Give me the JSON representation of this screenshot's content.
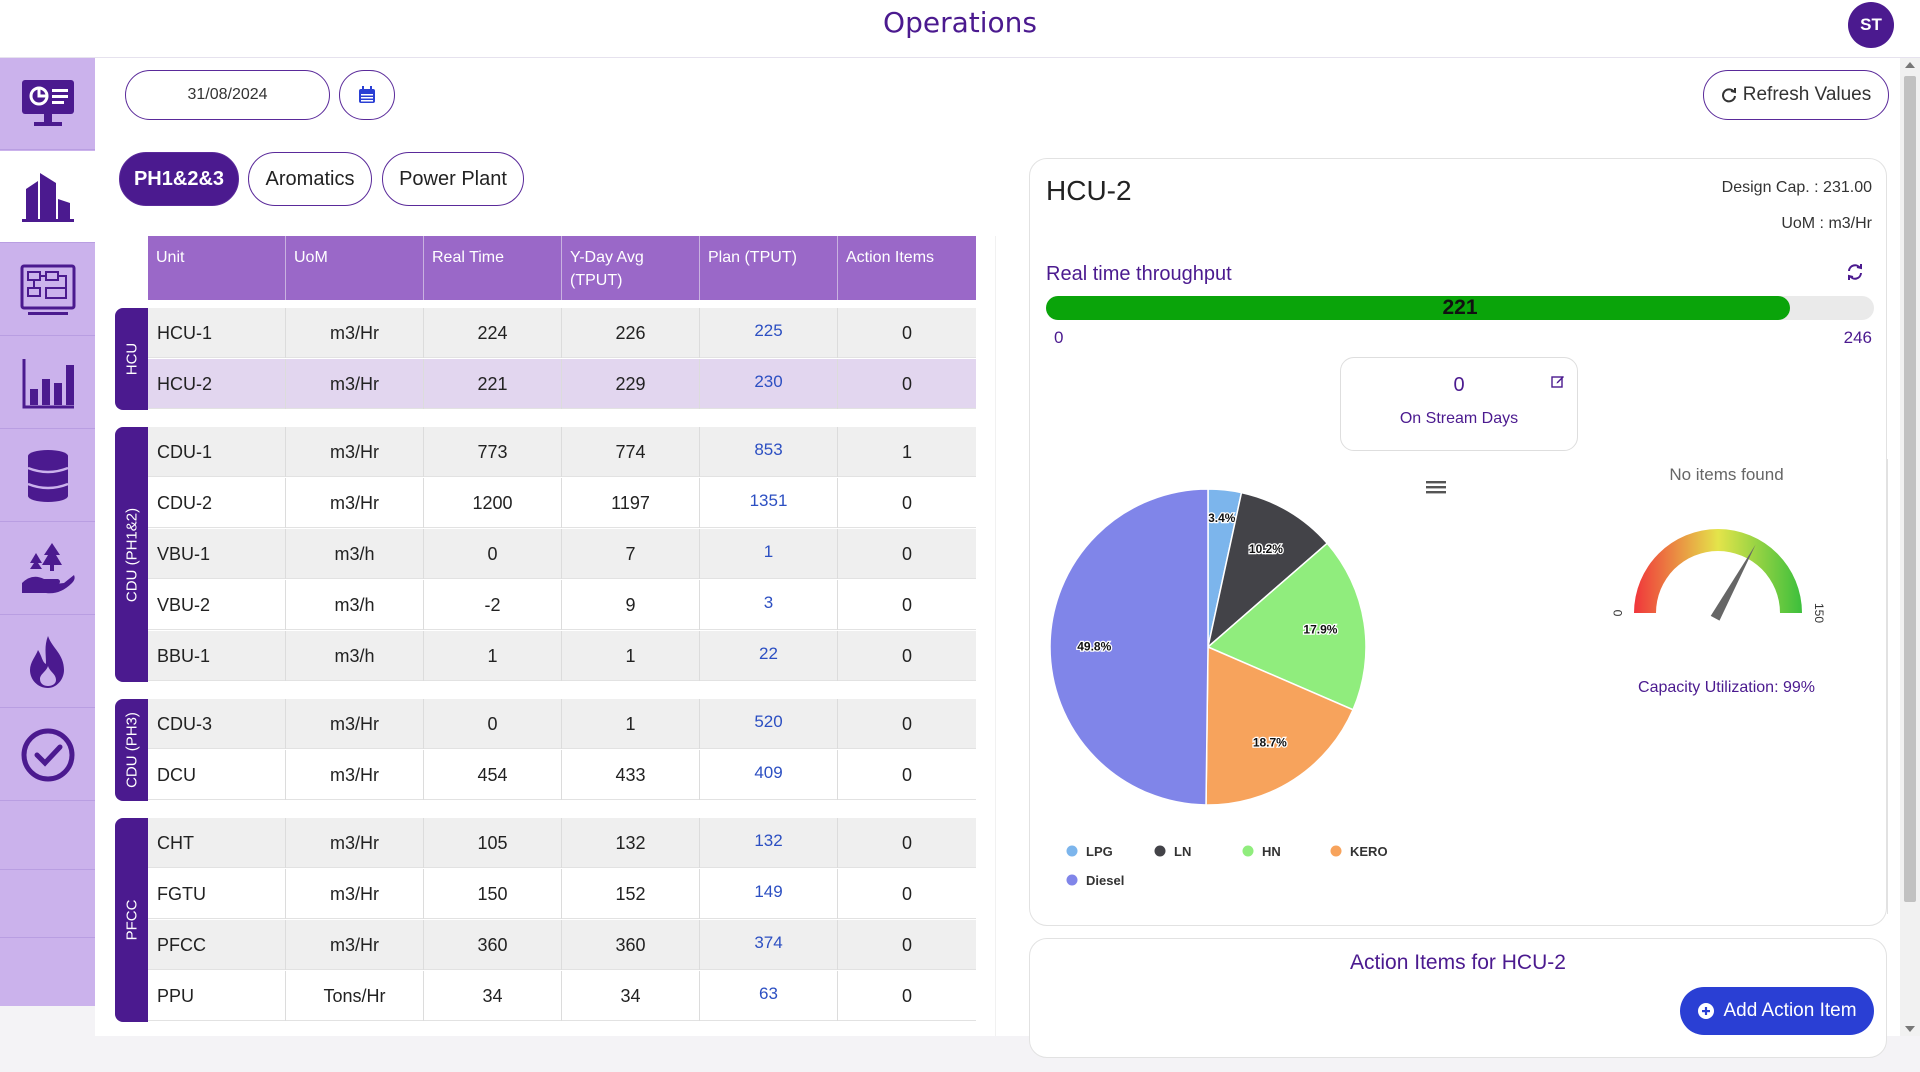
{
  "header": {
    "title": "Operations",
    "avatar_initials": "ST"
  },
  "sidebar": {
    "items": [
      {
        "icon": "dashboard-monitor-icon",
        "active": false
      },
      {
        "icon": "plant-building-icon",
        "active": true
      },
      {
        "icon": "schematic-board-icon",
        "active": false
      },
      {
        "icon": "bar-chart-icon",
        "active": false
      },
      {
        "icon": "barrel-icon",
        "active": false
      },
      {
        "icon": "environment-hand-icon",
        "active": false
      },
      {
        "icon": "flame-icon",
        "active": false
      },
      {
        "icon": "check-circle-icon",
        "active": false
      }
    ]
  },
  "toolbar": {
    "date": "31/08/2024",
    "refresh_label": "Refresh Values"
  },
  "tabs": [
    {
      "label": "PH1&2&3",
      "active": true
    },
    {
      "label": "Aromatics",
      "active": false
    },
    {
      "label": "Power Plant",
      "active": false
    }
  ],
  "table": {
    "columns": [
      "Unit",
      "UoM",
      "Real Time",
      "Y-Day Avg (TPUT)",
      "Plan (TPUT)",
      "Action Items"
    ],
    "groups": [
      {
        "label": "HCU",
        "rows": [
          [
            "HCU-1",
            "m3/Hr",
            "224",
            "226",
            "225",
            "0"
          ],
          [
            "HCU-2",
            "m3/Hr",
            "221",
            "229",
            "230",
            "0"
          ]
        ]
      },
      {
        "label": "CDU (PH1&2)",
        "rows": [
          [
            "CDU-1",
            "m3/Hr",
            "773",
            "774",
            "853",
            "1"
          ],
          [
            "CDU-2",
            "m3/Hr",
            "1200",
            "1197",
            "1351",
            "0"
          ],
          [
            "VBU-1",
            "m3/h",
            "0",
            "7",
            "1",
            "0"
          ],
          [
            "VBU-2",
            "m3/h",
            "-2",
            "9",
            "3",
            "0"
          ],
          [
            "BBU-1",
            "m3/h",
            "1",
            "1",
            "22",
            "0"
          ]
        ]
      },
      {
        "label": "CDU (PH3)",
        "rows": [
          [
            "CDU-3",
            "m3/Hr",
            "0",
            "1",
            "520",
            "0"
          ],
          [
            "DCU",
            "m3/Hr",
            "454",
            "433",
            "409",
            "0"
          ]
        ]
      },
      {
        "label": "PFCC",
        "rows": [
          [
            "CHT",
            "m3/Hr",
            "105",
            "132",
            "132",
            "0"
          ],
          [
            "FGTU",
            "m3/Hr",
            "150",
            "152",
            "149",
            "0"
          ],
          [
            "PFCC",
            "m3/Hr",
            "360",
            "360",
            "374",
            "0"
          ],
          [
            "PPU",
            "Tons/Hr",
            "34",
            "34",
            "63",
            "0"
          ]
        ]
      }
    ]
  },
  "detail": {
    "unit": "HCU-2",
    "design_cap": "Design Cap. : 231.00",
    "uom": "UoM : m3/Hr",
    "throughput_label": "Real time throughput",
    "throughput_value": "221",
    "throughput_min": "0",
    "throughput_max": "246",
    "throughput_fraction": 0.898,
    "on_stream_days": "0",
    "on_stream_label": "On Stream Days",
    "no_items": "No items found",
    "capacity_utilization": "Capacity Utilization: 99%",
    "gauge_min": "0",
    "gauge_max": "150",
    "gauge_fraction": 0.66
  },
  "chart_data": {
    "type": "pie",
    "slices": [
      {
        "name": "LPG",
        "value": 3.4,
        "label": "3.4%",
        "color": "#7cb5ec"
      },
      {
        "name": "LN",
        "value": 10.2,
        "label": "10.2%",
        "color": "#434348"
      },
      {
        "name": "HN",
        "value": 17.9,
        "label": "17.9%",
        "color": "#90ed7d"
      },
      {
        "name": "KERO",
        "value": 18.7,
        "label": "18.7%",
        "color": "#f7a35c"
      },
      {
        "name": "Diesel",
        "value": 49.8,
        "label": "49.8%",
        "color": "#8085e9"
      }
    ],
    "legend_position": "bottom"
  },
  "actions": {
    "title": "Action Items for HCU-2",
    "add_label": "Add Action Item"
  },
  "colors": {
    "brand": "#4b1a8f",
    "header_purple": "#9a68c8",
    "sidebar": "#cbb2ec",
    "progress": "#0aa40a",
    "button_blue": "#2a3fd4"
  }
}
